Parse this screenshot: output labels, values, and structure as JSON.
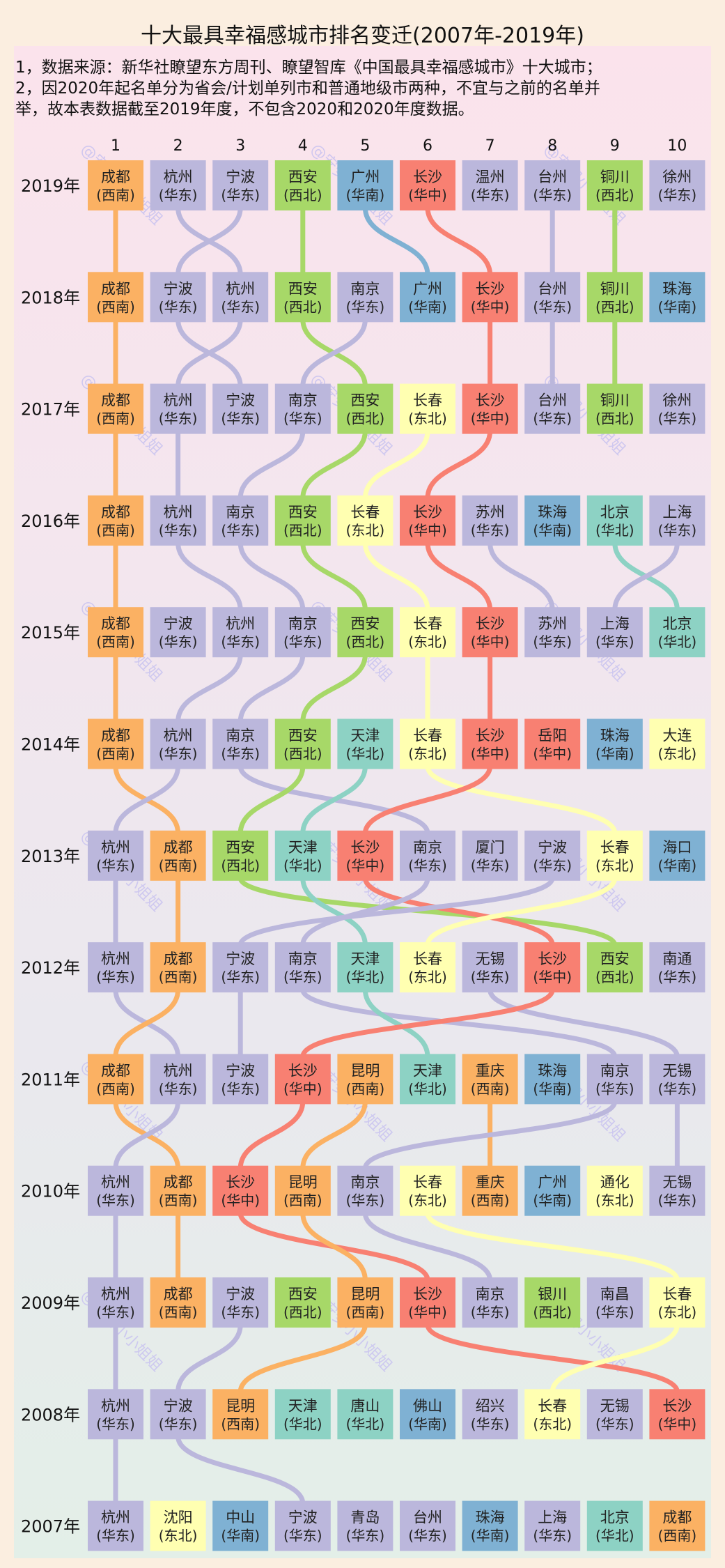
{
  "notes": [
    "1，数据来源：新华社瞭望东方周刊、瞭望智库《中国最具幸福感城市》十大城市；",
    "2，因2020年起名单分为省会/计划单列市和普通地级市两种，不宜与之前的名单并",
    "举，故本表数据截至2019年度，不包含2020和2020年度数据。"
  ],
  "watermark": "@安安小小姐姐",
  "region_colors": {
    "华东": "#bbb7dc",
    "西南": "#fbb163",
    "西北": "#a7d868",
    "华南": "#7fb1d3",
    "华中": "#f88072",
    "东北": "#ffffb1",
    "华北": "#8dd2c4"
  },
  "chart_data": {
    "type": "table",
    "title": "十大最具幸福感城市排名变迁(2007年-2019年)",
    "rank_labels": [
      "1",
      "2",
      "3",
      "4",
      "5",
      "6",
      "7",
      "8",
      "9",
      "10"
    ],
    "years": [
      {
        "label": "2019年",
        "cities": [
          {
            "name": "成都",
            "region": "西南"
          },
          {
            "name": "杭州",
            "region": "华东"
          },
          {
            "name": "宁波",
            "region": "华东"
          },
          {
            "name": "西安",
            "region": "西北"
          },
          {
            "name": "广州",
            "region": "华南"
          },
          {
            "name": "长沙",
            "region": "华中"
          },
          {
            "name": "温州",
            "region": "华东"
          },
          {
            "name": "台州",
            "region": "华东"
          },
          {
            "name": "铜川",
            "region": "西北"
          },
          {
            "name": "徐州",
            "region": "华东"
          }
        ]
      },
      {
        "label": "2018年",
        "cities": [
          {
            "name": "成都",
            "region": "西南"
          },
          {
            "name": "宁波",
            "region": "华东"
          },
          {
            "name": "杭州",
            "region": "华东"
          },
          {
            "name": "西安",
            "region": "西北"
          },
          {
            "name": "南京",
            "region": "华东"
          },
          {
            "name": "广州",
            "region": "华南"
          },
          {
            "name": "长沙",
            "region": "华中"
          },
          {
            "name": "台州",
            "region": "华东"
          },
          {
            "name": "铜川",
            "region": "西北"
          },
          {
            "name": "珠海",
            "region": "华南"
          }
        ]
      },
      {
        "label": "2017年",
        "cities": [
          {
            "name": "成都",
            "region": "西南"
          },
          {
            "name": "杭州",
            "region": "华东"
          },
          {
            "name": "宁波",
            "region": "华东"
          },
          {
            "name": "南京",
            "region": "华东"
          },
          {
            "name": "西安",
            "region": "西北"
          },
          {
            "name": "长春",
            "region": "东北"
          },
          {
            "name": "长沙",
            "region": "华中"
          },
          {
            "name": "台州",
            "region": "华东"
          },
          {
            "name": "铜川",
            "region": "西北"
          },
          {
            "name": "徐州",
            "region": "华东"
          }
        ]
      },
      {
        "label": "2016年",
        "cities": [
          {
            "name": "成都",
            "region": "西南"
          },
          {
            "name": "杭州",
            "region": "华东"
          },
          {
            "name": "南京",
            "region": "华东"
          },
          {
            "name": "西安",
            "region": "西北"
          },
          {
            "name": "长春",
            "region": "东北"
          },
          {
            "name": "长沙",
            "region": "华中"
          },
          {
            "name": "苏州",
            "region": "华东"
          },
          {
            "name": "珠海",
            "region": "华南"
          },
          {
            "name": "北京",
            "region": "华北"
          },
          {
            "name": "上海",
            "region": "华东"
          }
        ]
      },
      {
        "label": "2015年",
        "cities": [
          {
            "name": "成都",
            "region": "西南"
          },
          {
            "name": "宁波",
            "region": "华东"
          },
          {
            "name": "杭州",
            "region": "华东"
          },
          {
            "name": "南京",
            "region": "华东"
          },
          {
            "name": "西安",
            "region": "西北"
          },
          {
            "name": "长春",
            "region": "东北"
          },
          {
            "name": "长沙",
            "region": "华中"
          },
          {
            "name": "苏州",
            "region": "华东"
          },
          {
            "name": "上海",
            "region": "华东"
          },
          {
            "name": "北京",
            "region": "华北"
          }
        ]
      },
      {
        "label": "2014年",
        "cities": [
          {
            "name": "成都",
            "region": "西南"
          },
          {
            "name": "杭州",
            "region": "华东"
          },
          {
            "name": "南京",
            "region": "华东"
          },
          {
            "name": "西安",
            "region": "西北"
          },
          {
            "name": "天津",
            "region": "华北"
          },
          {
            "name": "长春",
            "region": "东北"
          },
          {
            "name": "长沙",
            "region": "华中"
          },
          {
            "name": "岳阳",
            "region": "华中"
          },
          {
            "name": "珠海",
            "region": "华南"
          },
          {
            "name": "大连",
            "region": "东北"
          }
        ]
      },
      {
        "label": "2013年",
        "cities": [
          {
            "name": "杭州",
            "region": "华东"
          },
          {
            "name": "成都",
            "region": "西南"
          },
          {
            "name": "西安",
            "region": "西北"
          },
          {
            "name": "天津",
            "region": "华北"
          },
          {
            "name": "长沙",
            "region": "华中"
          },
          {
            "name": "南京",
            "region": "华东"
          },
          {
            "name": "厦门",
            "region": "华东"
          },
          {
            "name": "宁波",
            "region": "华东"
          },
          {
            "name": "长春",
            "region": "东北"
          },
          {
            "name": "海口",
            "region": "华南"
          }
        ]
      },
      {
        "label": "2012年",
        "cities": [
          {
            "name": "杭州",
            "region": "华东"
          },
          {
            "name": "成都",
            "region": "西南"
          },
          {
            "name": "宁波",
            "region": "华东"
          },
          {
            "name": "南京",
            "region": "华东"
          },
          {
            "name": "天津",
            "region": "华北"
          },
          {
            "name": "长春",
            "region": "东北"
          },
          {
            "name": "无锡",
            "region": "华东"
          },
          {
            "name": "长沙",
            "region": "华中"
          },
          {
            "name": "西安",
            "region": "西北"
          },
          {
            "name": "南通",
            "region": "华东"
          }
        ]
      },
      {
        "label": "2011年",
        "cities": [
          {
            "name": "成都",
            "region": "西南"
          },
          {
            "name": "杭州",
            "region": "华东"
          },
          {
            "name": "宁波",
            "region": "华东"
          },
          {
            "name": "长沙",
            "region": "华中"
          },
          {
            "name": "昆明",
            "region": "西南"
          },
          {
            "name": "天津",
            "region": "华北"
          },
          {
            "name": "重庆",
            "region": "西南"
          },
          {
            "name": "珠海",
            "region": "华南"
          },
          {
            "name": "南京",
            "region": "华东"
          },
          {
            "name": "无锡",
            "region": "华东"
          }
        ]
      },
      {
        "label": "2010年",
        "cities": [
          {
            "name": "杭州",
            "region": "华东"
          },
          {
            "name": "成都",
            "region": "西南"
          },
          {
            "name": "长沙",
            "region": "华中"
          },
          {
            "name": "昆明",
            "region": "西南"
          },
          {
            "name": "南京",
            "region": "华东"
          },
          {
            "name": "长春",
            "region": "东北"
          },
          {
            "name": "重庆",
            "region": "西南"
          },
          {
            "name": "广州",
            "region": "华南"
          },
          {
            "name": "通化",
            "region": "东北"
          },
          {
            "name": "无锡",
            "region": "华东"
          }
        ]
      },
      {
        "label": "2009年",
        "cities": [
          {
            "name": "杭州",
            "region": "华东"
          },
          {
            "name": "成都",
            "region": "西南"
          },
          {
            "name": "宁波",
            "region": "华东"
          },
          {
            "name": "西安",
            "region": "西北"
          },
          {
            "name": "昆明",
            "region": "西南"
          },
          {
            "name": "长沙",
            "region": "华中"
          },
          {
            "name": "南京",
            "region": "华东"
          },
          {
            "name": "银川",
            "region": "西北"
          },
          {
            "name": "南昌",
            "region": "华东"
          },
          {
            "name": "长春",
            "region": "东北"
          }
        ]
      },
      {
        "label": "2008年",
        "cities": [
          {
            "name": "杭州",
            "region": "华东"
          },
          {
            "name": "宁波",
            "region": "华东"
          },
          {
            "name": "昆明",
            "region": "西南"
          },
          {
            "name": "天津",
            "region": "华北"
          },
          {
            "name": "唐山",
            "region": "华北"
          },
          {
            "name": "佛山",
            "region": "华南"
          },
          {
            "name": "绍兴",
            "region": "华东"
          },
          {
            "name": "长春",
            "region": "东北"
          },
          {
            "name": "无锡",
            "region": "华东"
          },
          {
            "name": "长沙",
            "region": "华中"
          }
        ]
      },
      {
        "label": "2007年",
        "cities": [
          {
            "name": "杭州",
            "region": "华东"
          },
          {
            "name": "沈阳",
            "region": "东北"
          },
          {
            "name": "中山",
            "region": "华南"
          },
          {
            "name": "宁波",
            "region": "华东"
          },
          {
            "name": "青岛",
            "region": "华东"
          },
          {
            "name": "台州",
            "region": "华东"
          },
          {
            "name": "珠海",
            "region": "华南"
          },
          {
            "name": "上海",
            "region": "华东"
          },
          {
            "name": "北京",
            "region": "华北"
          },
          {
            "name": "成都",
            "region": "西南"
          }
        ]
      }
    ]
  }
}
